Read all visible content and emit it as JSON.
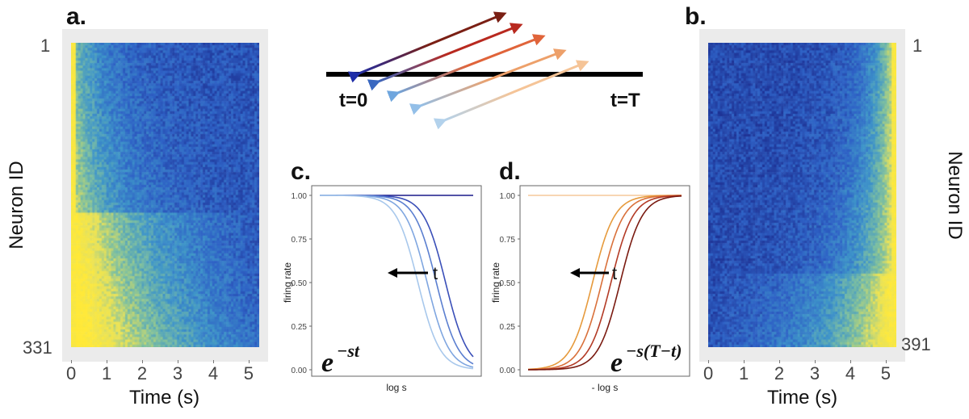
{
  "chart_data": [
    {
      "panel": "a.",
      "type": "heatmap",
      "xlabel": "Time (s)",
      "ylabel": "Neuron ID",
      "x_ticks": [
        "0",
        "1",
        "2",
        "3",
        "4",
        "5"
      ],
      "xlim": [
        0,
        5.3
      ],
      "y_ticks": [
        "1",
        "331"
      ],
      "n_neurons": 331,
      "colormap": [
        "#1b2a8c",
        "#2f62c6",
        "#3f95c9",
        "#7fc0a0",
        "#e8e25a",
        "#ffe93a"
      ],
      "pattern": "firing decreases over time (time cells for t)"
    },
    {
      "panel": "b.",
      "type": "heatmap",
      "xlabel": "Time (s)",
      "ylabel": "Neuron ID",
      "x_ticks": [
        "0",
        "1",
        "2",
        "3",
        "4",
        "5"
      ],
      "xlim": [
        0,
        5.3
      ],
      "y_ticks": [
        "1",
        "391"
      ],
      "n_neurons": 391,
      "colormap": [
        "#1b2a8c",
        "#2f62c6",
        "#3f95c9",
        "#7fc0a0",
        "#e8e25a",
        "#ffe93a"
      ],
      "pattern": "firing increases toward end of interval (time to T)"
    },
    {
      "panel": "c.",
      "type": "line",
      "xlabel": "log s",
      "ylabel": "firing rate",
      "y_ticks": [
        "0.00",
        "0.25",
        "0.50",
        "0.75",
        "1.00"
      ],
      "ylim": [
        0,
        1
      ],
      "annotation": "t",
      "formula_base": "e",
      "formula_exp": "−st",
      "series": [
        {
          "color": "#1a1a8a",
          "midpoint": null
        },
        {
          "color": "#3a4fb8",
          "midpoint": 0.82
        },
        {
          "color": "#5b7fd0",
          "midpoint": 0.76
        },
        {
          "color": "#7fa6e0",
          "midpoint": 0.7
        },
        {
          "color": "#a8c8ec",
          "midpoint": 0.64
        }
      ]
    },
    {
      "panel": "d.",
      "type": "line",
      "xlabel": "- log s",
      "ylabel": "firing rate",
      "y_ticks": [
        "0.00",
        "0.25",
        "0.50",
        "0.75",
        "1.00"
      ],
      "ylim": [
        0,
        1
      ],
      "annotation": "t",
      "formula_base": "e",
      "formula_exp": "−s(T−t)",
      "series": [
        {
          "color": "#f5c89a",
          "midpoint": null
        },
        {
          "color": "#e69a3c",
          "midpoint": 0.42
        },
        {
          "color": "#d9703a",
          "midpoint": 0.48
        },
        {
          "color": "#b33a25",
          "midpoint": 0.54
        },
        {
          "color": "#7a1a10",
          "midpoint": 0.6
        }
      ]
    }
  ],
  "schematic": {
    "start_label": "t=0",
    "end_label": "t=T",
    "arrows": [
      {
        "color": "#7a1f14"
      },
      {
        "color": "#b8291f"
      },
      {
        "color": "#e0643a"
      },
      {
        "color": "#eda06a"
      },
      {
        "color": "#f5c497"
      }
    ],
    "arrow_ends": [
      {
        "color": "#1f2ea8"
      },
      {
        "color": "#3a68c0"
      },
      {
        "color": "#6fa6de"
      },
      {
        "color": "#93bfe8"
      },
      {
        "color": "#b3d2ec"
      }
    ]
  }
}
